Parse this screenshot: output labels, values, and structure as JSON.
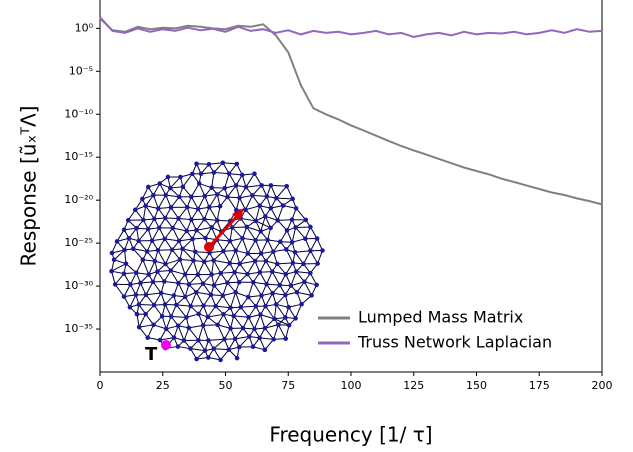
{
  "chart_data": {
    "type": "line",
    "x_label": "Frequency [1/ τ]",
    "y_label": "Response [ũₓᵀΛ]",
    "annotation": "T",
    "log_y": true,
    "legend": "lower right",
    "x": [
      0,
      5,
      10,
      15,
      20,
      25,
      30,
      35,
      40,
      45,
      50,
      55,
      60,
      65,
      70,
      75,
      80,
      85,
      90,
      95,
      100,
      105,
      110,
      115,
      120,
      125,
      130,
      135,
      140,
      145,
      150,
      155,
      160,
      165,
      170,
      175,
      180,
      185,
      190,
      195,
      200
    ],
    "series": [
      {
        "name": "Lumped Mass Matrix",
        "color": "#808080",
        "values": [
          15,
          0.6,
          0.4,
          1.5,
          0.8,
          1.2,
          1,
          2,
          1.5,
          1,
          0.8,
          2,
          1.5,
          3,
          0.16,
          0.0016,
          2.5e-07,
          5e-10,
          1e-10,
          2.5e-11,
          5e-12,
          1.3e-12,
          3.2e-13,
          7.9e-14,
          2e-14,
          6.3e-15,
          2e-15,
          6.3e-16,
          2e-16,
          6.3e-17,
          2.5e-17,
          1e-17,
          3.2e-18,
          1.3e-18,
          5e-19,
          2e-19,
          7.9e-20,
          4e-20,
          1.6e-20,
          7.9e-21,
          3.2e-21
        ]
      },
      {
        "name": "Truss Network Laplacian",
        "color": "#9467bd",
        "values": [
          20,
          0.5,
          0.3,
          1,
          0.4,
          0.8,
          0.5,
          1.2,
          0.6,
          0.9,
          0.4,
          1.5,
          0.5,
          0.8,
          0.3,
          0.6,
          0.2,
          0.5,
          0.3,
          0.4,
          0.2,
          0.3,
          0.5,
          0.2,
          0.3,
          0.1,
          0.2,
          0.3,
          0.15,
          0.4,
          0.2,
          0.3,
          0.25,
          0.4,
          0.2,
          0.3,
          0.6,
          0.3,
          0.8,
          0.4,
          0.5
        ]
      }
    ],
    "xlim": [
      0,
      200
    ],
    "xticks": [
      0,
      25,
      50,
      75,
      100,
      125,
      150,
      175,
      200
    ],
    "ylim": [
      1e-40,
      2000
    ],
    "yticks": [
      {
        "value": 1,
        "label": "10⁰"
      },
      {
        "value": 1e-05,
        "label": "10⁻⁵"
      },
      {
        "value": 1e-10,
        "label": "10⁻¹⁰"
      },
      {
        "value": 1e-15,
        "label": "10⁻¹⁵"
      },
      {
        "value": 1e-20,
        "label": "10⁻²⁰"
      },
      {
        "value": 1e-25,
        "label": "10⁻²⁵"
      },
      {
        "value": 1e-30,
        "label": "10⁻³⁰"
      },
      {
        "value": 1e-35,
        "label": "10⁻³⁵"
      }
    ]
  }
}
